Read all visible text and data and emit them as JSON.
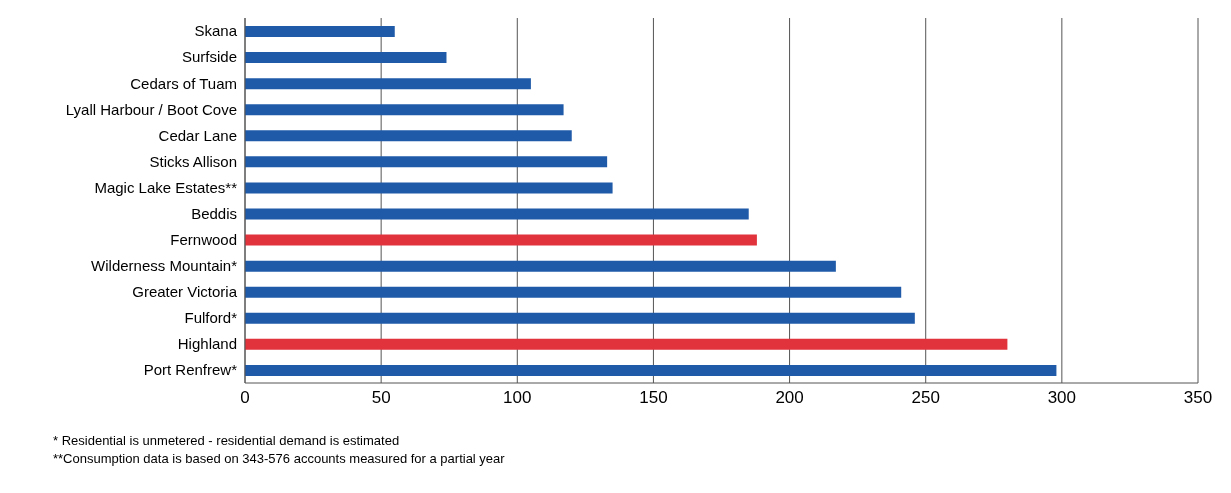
{
  "chart_data": {
    "type": "bar",
    "orientation": "horizontal",
    "categories": [
      "Skana",
      "Surfside",
      "Cedars of Tuam",
      "Lyall Harbour / Boot Cove",
      "Cedar Lane",
      "Sticks Allison",
      "Magic Lake Estates**",
      "Beddis",
      "Fernwood",
      "Wilderness Mountain*",
      "Greater Victoria",
      "Fulford*",
      "Highland",
      "Port Renfrew*"
    ],
    "values": [
      55,
      74,
      105,
      117,
      120,
      133,
      135,
      185,
      188,
      217,
      241,
      246,
      280,
      298
    ],
    "colors": [
      "#1f5aa8",
      "#1f5aa8",
      "#1f5aa8",
      "#1f5aa8",
      "#1f5aa8",
      "#1f5aa8",
      "#1f5aa8",
      "#1f5aa8",
      "#e0333c",
      "#1f5aa8",
      "#1f5aa8",
      "#1f5aa8",
      "#e0333c",
      "#1f5aa8"
    ],
    "xlim": [
      0,
      350
    ],
    "xticks": [
      0,
      50,
      100,
      150,
      200,
      250,
      300,
      350
    ],
    "grid": "x",
    "annotations": [
      "* Residential is unmetered - residential demand is estimated",
      "**Consumption data is based on 343-576 accounts measured for a partial year"
    ]
  }
}
